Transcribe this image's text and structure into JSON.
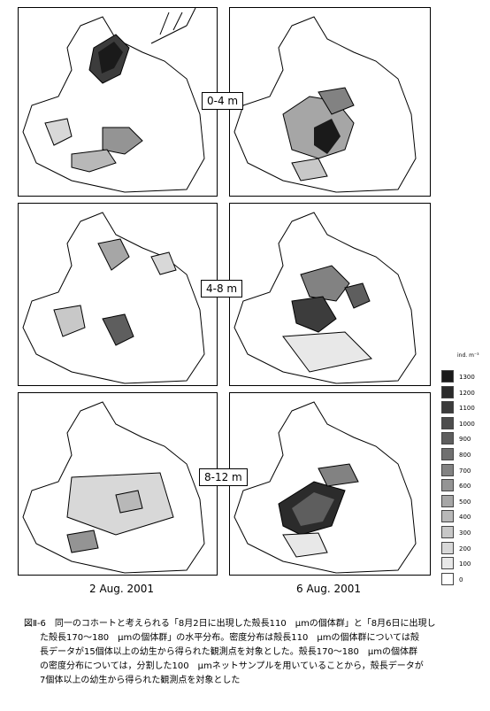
{
  "depth_labels": [
    "0-4 m",
    "4-8 m",
    "8-12 m"
  ],
  "dates": [
    "2 Aug. 2001",
    "6 Aug. 2001"
  ],
  "legend": {
    "unit": "ind. m⁻³",
    "levels": [
      "1300",
      "1200",
      "1100",
      "1000",
      "900",
      "800",
      "700",
      "600",
      "500",
      "400",
      "300",
      "200",
      "100",
      "0"
    ],
    "colors": [
      "#1a1a1a",
      "#2b2b2b",
      "#3c3c3c",
      "#4d4d4d",
      "#5e5e5e",
      "#707070",
      "#828282",
      "#949494",
      "#a6a6a6",
      "#b8b8b8",
      "#c8c8c8",
      "#d8d8d8",
      "#e8e8e8",
      "#ffffff"
    ]
  },
  "caption": {
    "line1": "図Ⅱ-6　同一のコホートと考えられる「8月2日に出現した殻長110　μmの個体群」と「8月6日に出現し",
    "line2": "た殻長170～180　μmの個体群」の水平分布。密度分布は殻長110　μmの個体群については殻",
    "line3": "長データが15個体以上の幼生から得られた観測点を対象とした。殻長170～180　μmの個体群",
    "line4": "の密度分布については，分割した100　μmネットサンプルを用いていることから，殻長データが",
    "line5": "7個体以上の幼生から得られた観測点を対象とした"
  }
}
